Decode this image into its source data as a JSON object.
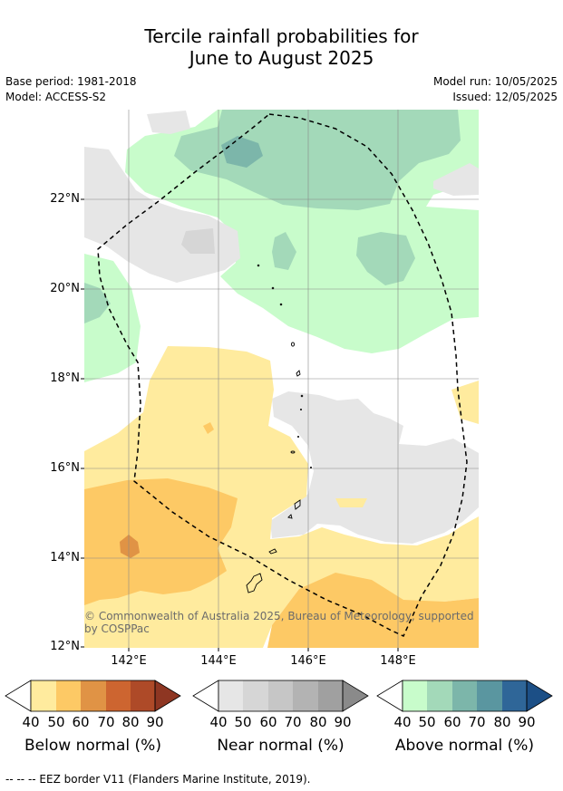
{
  "title_line1": "Tercile rainfall probabilities for",
  "title_line2": "June to August 2025",
  "meta_left": [
    "Base period: 1981-2018",
    "Model: ACCESS-S2"
  ],
  "meta_right": [
    "Model run: 10/05/2025",
    "Issued: 12/05/2025"
  ],
  "lat_labels": [
    "22°N",
    "20°N",
    "18°N",
    "16°N",
    "14°N",
    "12°N"
  ],
  "lon_labels": [
    "142°E",
    "144°E",
    "146°E",
    "148°E"
  ],
  "copyright_line1": "© Commonwealth of Australia 2025, Bureau of Meteorology, supported",
  "copyright_line2": "by COSPPac",
  "colorbars": [
    {
      "name": "Below normal (%)",
      "ticks": [
        "40",
        "50",
        "60",
        "70",
        "80",
        "90"
      ],
      "colors": [
        "#ffeb9e",
        "#fdc965",
        "#e09345",
        "#cd6530",
        "#ae4a28",
        "#8e3622"
      ]
    },
    {
      "name": "Near normal (%)",
      "ticks": [
        "40",
        "50",
        "60",
        "70",
        "80",
        "90"
      ],
      "colors": [
        "#e6e6e6",
        "#d6d6d6",
        "#c6c6c6",
        "#b3b3b3",
        "#a0a0a0",
        "#8a8a8a"
      ]
    },
    {
      "name": "Above normal (%)",
      "ticks": [
        "40",
        "50",
        "60",
        "70",
        "80",
        "90"
      ],
      "colors": [
        "#c8fccb",
        "#a3d9b9",
        "#7cb6aa",
        "#5a96a0",
        "#2f6698",
        "#1c4f86"
      ]
    }
  ],
  "footnote": "--  --  -- EEZ border V11 (Flanders Marine Institute, 2019)."
}
